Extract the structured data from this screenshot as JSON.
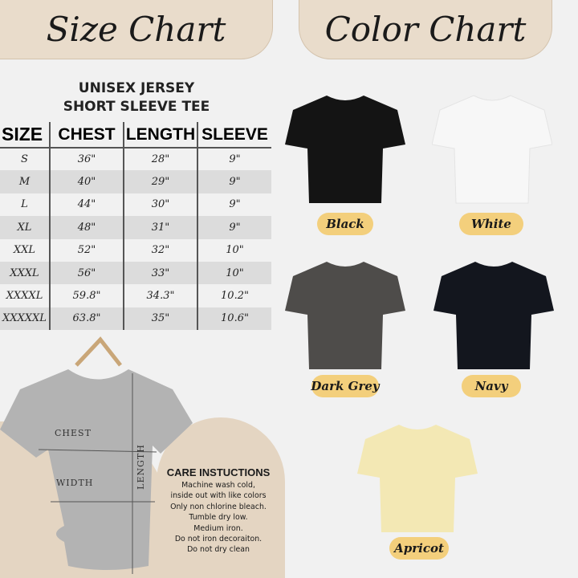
{
  "headers": {
    "size_chart": "Size Chart",
    "color_chart": "Color Chart"
  },
  "product": {
    "line1": "UNISEX JERSEY",
    "line2": "SHORT SLEEVE TEE"
  },
  "table": {
    "columns": [
      "SIZE",
      "CHEST",
      "LENGTH",
      "SLEEVE"
    ],
    "rows": [
      [
        "S",
        "36\"",
        "28\"",
        "9\""
      ],
      [
        "M",
        "40\"",
        "29\"",
        "9\""
      ],
      [
        "L",
        "44\"",
        "30\"",
        "9\""
      ],
      [
        "XL",
        "48\"",
        "31\"",
        "9\""
      ],
      [
        "XXL",
        "52\"",
        "32\"",
        "10\""
      ],
      [
        "XXXL",
        "56\"",
        "33\"",
        "10\""
      ],
      [
        "XXXXL",
        "59.8\"",
        "34.3\"",
        "10.2\""
      ],
      [
        "XXXXXL",
        "63.8\"",
        "35\"",
        "10.6\""
      ]
    ]
  },
  "diagram": {
    "chest": "CHEST",
    "width": "WIDTH",
    "length": "LENGTH",
    "shirt_color": "#b3b3b3"
  },
  "care": {
    "title": "CARE INSTUCTIONS",
    "lines": [
      "Machine wash cold,",
      "inside out with like colors",
      "Only non chlorine bleach.",
      "Tumble dry low.",
      "Medium iron.",
      "Do not iron decoraiton.",
      "Do not dry clean"
    ]
  },
  "colors": [
    {
      "name": "Black",
      "hex": "#141414"
    },
    {
      "name": "White",
      "hex": "#f7f7f7"
    },
    {
      "name": "Dark Grey",
      "hex": "#4e4c4a"
    },
    {
      "name": "Navy",
      "hex": "#13161e"
    },
    {
      "name": "Apricot",
      "hex": "#f3e8b4"
    }
  ],
  "label_color": "#f3cf7c",
  "accent_beige": "#e4d5c2"
}
